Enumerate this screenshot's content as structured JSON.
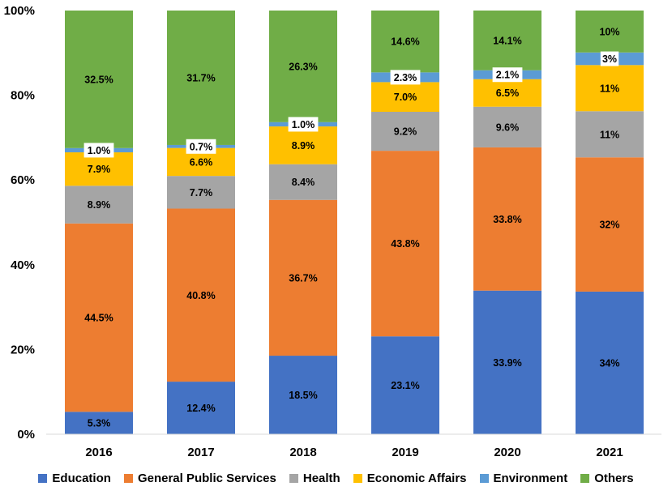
{
  "chart_data": {
    "type": "bar",
    "stacked": true,
    "categories": [
      "2016",
      "2017",
      "2018",
      "2019",
      "2020",
      "2021"
    ],
    "ylim": [
      0,
      100
    ],
    "y_ticks": [
      "0%",
      "20%",
      "40%",
      "60%",
      "80%",
      "100%"
    ],
    "grid": false,
    "legend_position": "bottom",
    "series": [
      {
        "name": "Education",
        "color": "#4472C4",
        "values": [
          5.3,
          12.4,
          18.5,
          23.1,
          33.9,
          34
        ],
        "labels": [
          "5.3%",
          "12.4%",
          "18.5%",
          "23.1%",
          "33.9%",
          "34%"
        ]
      },
      {
        "name": "General Public Services",
        "color": "#ED7D31",
        "values": [
          44.5,
          40.8,
          36.7,
          43.8,
          33.8,
          32
        ],
        "labels": [
          "44.5%",
          "40.8%",
          "36.7%",
          "43.8%",
          "33.8%",
          "32%"
        ]
      },
      {
        "name": "Health",
        "color": "#A5A5A5",
        "values": [
          8.9,
          7.7,
          8.4,
          9.2,
          9.6,
          11
        ],
        "labels": [
          "8.9%",
          "7.7%",
          "8.4%",
          "9.2%",
          "9.6%",
          "11%"
        ]
      },
      {
        "name": "Economic Affairs",
        "color": "#FFC000",
        "values": [
          7.9,
          6.6,
          8.9,
          7.0,
          6.5,
          11
        ],
        "labels": [
          "7.9%",
          "6.6%",
          "8.9%",
          "7.0%",
          "6.5%",
          "11%"
        ]
      },
      {
        "name": "Environment",
        "color": "#5B9BD5",
        "values": [
          1.0,
          0.7,
          1.0,
          2.3,
          2.1,
          3
        ],
        "labels": [
          "1.0%",
          "0.7%",
          "1.0%",
          "2.3%",
          "2.1%",
          "3%"
        ]
      },
      {
        "name": "Others",
        "color": "#70AD47",
        "values": [
          32.5,
          31.7,
          26.3,
          14.6,
          14.1,
          10
        ],
        "labels": [
          "32.5%",
          "31.7%",
          "26.3%",
          "14.6%",
          "14.1%",
          "10%"
        ]
      }
    ]
  }
}
